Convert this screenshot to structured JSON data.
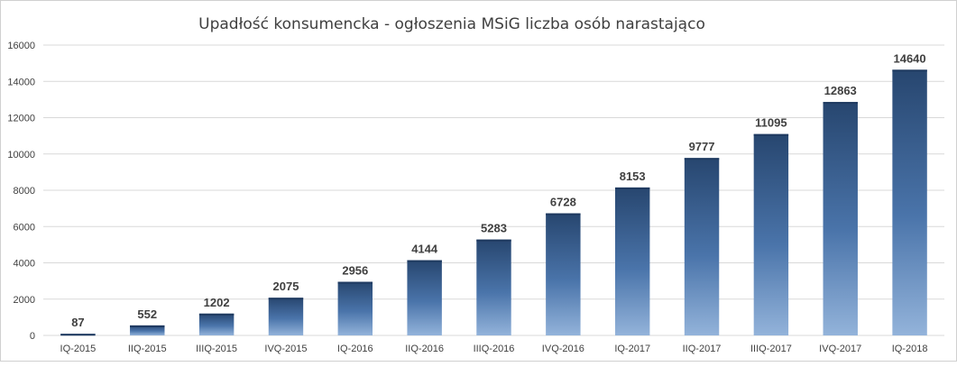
{
  "chart_data": {
    "type": "bar",
    "title": "Upadłość konsumencka - ogłoszenia MSiG liczba osób narastająco",
    "xlabel": "",
    "ylabel": "",
    "categories": [
      "IQ-2015",
      "IIQ-2015",
      "IIIQ-2015",
      "IVQ-2015",
      "IQ-2016",
      "IIQ-2016",
      "IIIQ-2016",
      "IVQ-2016",
      "IQ-2017",
      "IIQ-2017",
      "IIIQ-2017",
      "IVQ-2017",
      "IQ-2018"
    ],
    "values": [
      87,
      552,
      1202,
      2075,
      2956,
      4144,
      5283,
      6728,
      8153,
      9777,
      11095,
      12863,
      14640
    ],
    "ylim": [
      0,
      16000
    ],
    "yticks": [
      0,
      2000,
      4000,
      6000,
      8000,
      10000,
      12000,
      14000,
      16000
    ],
    "grid": true,
    "legend": "none",
    "colors": {
      "bar_top": "#2a4a78",
      "bar_bottom": "#8fb0d8",
      "grid": "#d9d9d9"
    }
  }
}
